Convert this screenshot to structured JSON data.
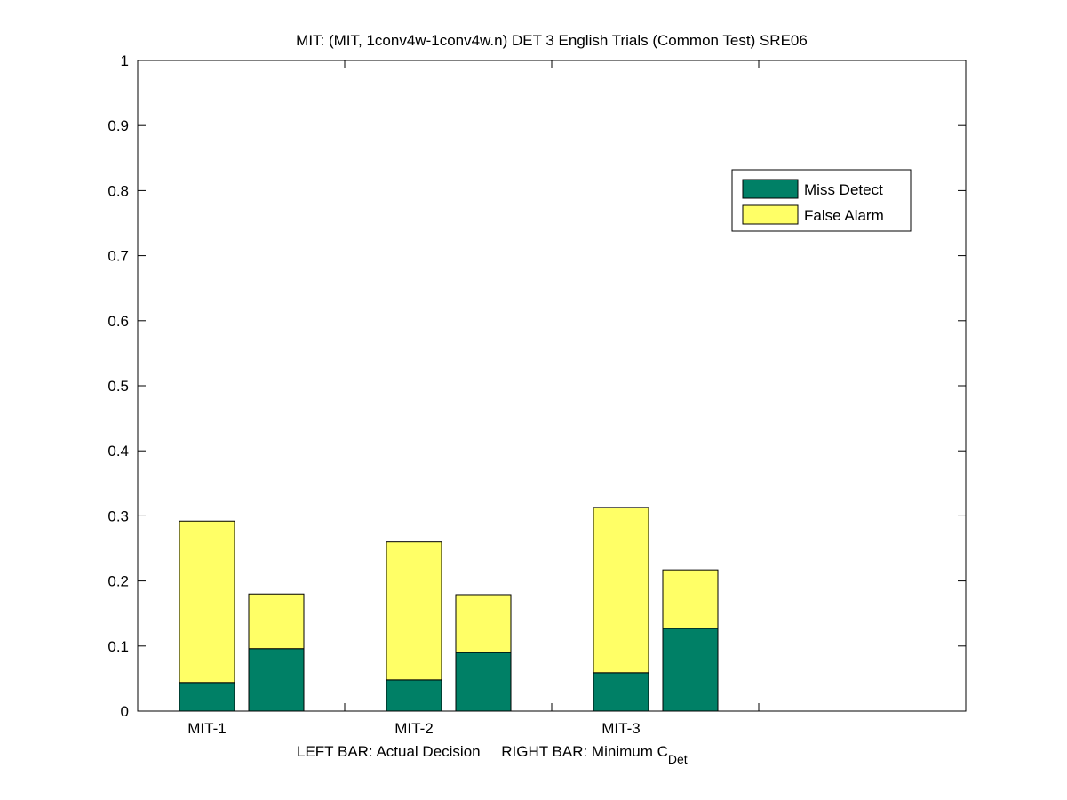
{
  "chart_data": {
    "type": "stacked-bar",
    "title": "MIT: (MIT, 1conv4w-1conv4w.n) DET 3 English Trials (Common Test) SRE06",
    "xlabel": "LEFT BAR: Actual Decision     RIGHT BAR: Minimum C",
    "xlabel_subscript": "Det",
    "categories": [
      "MIT-1",
      null,
      "MIT-2",
      null,
      "MIT-3",
      null
    ],
    "series": [
      {
        "name": "Miss Detect",
        "color": "#008066",
        "values": [
          0.044,
          0.096,
          0.048,
          0.09,
          0.059,
          0.127
        ]
      },
      {
        "name": "False Alarm",
        "color": "#ffff66",
        "values": [
          0.248,
          0.084,
          0.212,
          0.089,
          0.254,
          0.09
        ]
      }
    ],
    "ylim": [
      0,
      1
    ],
    "yticks": [
      0,
      0.1,
      0.2,
      0.3,
      0.4,
      0.5,
      0.6,
      0.7,
      0.8,
      0.9,
      1
    ]
  }
}
